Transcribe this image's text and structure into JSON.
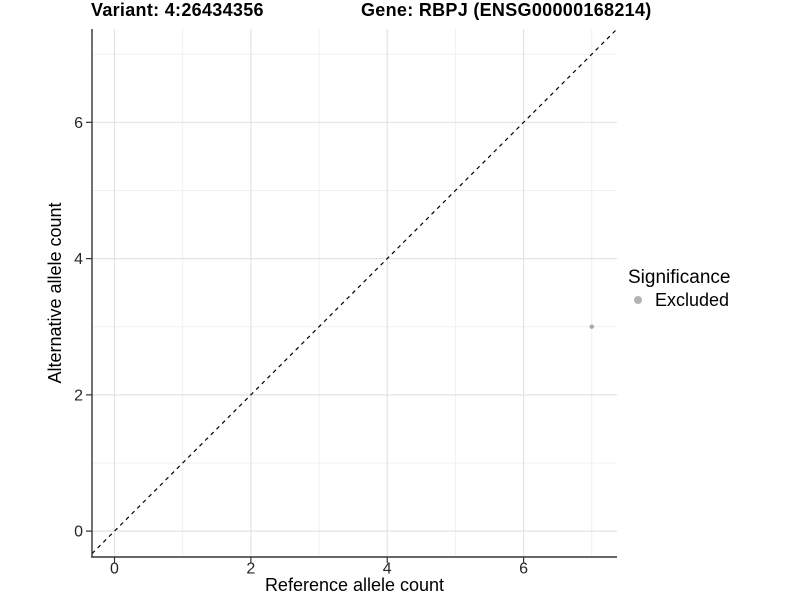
{
  "chart_data": {
    "type": "scatter",
    "titles": {
      "left": "Variant: 4:26434356",
      "right": "Gene: RBPJ (ENSG00000168214)"
    },
    "xlabel": "Reference allele count",
    "ylabel": "Alternative allele count",
    "xlim": [
      -0.33,
      7.37
    ],
    "ylim": [
      -0.38,
      7.37
    ],
    "x_ticks": [
      0,
      2,
      4,
      6
    ],
    "y_ticks": [
      0,
      2,
      4,
      6
    ],
    "x_minor_ticks": [
      1,
      3,
      5,
      7
    ],
    "y_minor_ticks": [
      1,
      3,
      5,
      7
    ],
    "grid": true,
    "points": [
      {
        "x": 7,
        "y": 3,
        "series": "Excluded"
      }
    ],
    "reference_line": {
      "type": "abline",
      "slope": 1,
      "intercept": 0,
      "style": "dashed",
      "color": "#000000"
    },
    "legend": {
      "title": "Significance",
      "position": "right",
      "entries": [
        {
          "label": "Excluded",
          "color": "#b3b3b3",
          "marker": "circle"
        }
      ]
    },
    "style": {
      "background": "#ffffff",
      "grid_major_color": "#e3e3e3",
      "grid_minor_color": "#f0f0f0",
      "axis_line_color": "#333333",
      "tick_label_color": "#262626",
      "point_color": "#a8a8a8"
    }
  }
}
